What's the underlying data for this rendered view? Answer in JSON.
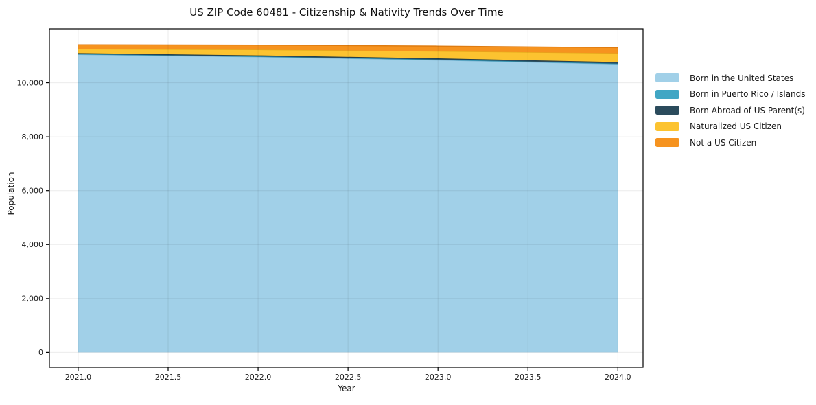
{
  "figure": {
    "title": "US ZIP Code 60481 - Citizenship & Nativity Trends Over Time",
    "xlabel": "Year",
    "ylabel": "Population",
    "background_color": "#ffffff",
    "spine_color": "#000000",
    "grid_color_rgba": "rgba(0,0,0,0.08)",
    "tick_label_color": "#1a1a1a"
  },
  "chart_data": {
    "type": "area",
    "stacked": true,
    "title": "US ZIP Code 60481 - Citizenship & Nativity Trends Over Time",
    "xlabel": "Year",
    "ylabel": "Population",
    "x": [
      2021,
      2022,
      2023,
      2024
    ],
    "series": [
      {
        "name": "Born in the United States",
        "color": "#A1D0E8",
        "edge": "#7FB6D4",
        "values": [
          11050,
          10960,
          10840,
          10690
        ]
      },
      {
        "name": "Born in Puerto Rico / Islands",
        "color": "#41A6C4",
        "edge": "#2E8BA8",
        "values": [
          15,
          18,
          20,
          22
        ]
      },
      {
        "name": "Born Abroad of US Parent(s)",
        "color": "#2B4B5C",
        "edge": "#1E3845",
        "values": [
          35,
          40,
          45,
          55
        ]
      },
      {
        "name": "Naturalized US Citizen",
        "color": "#FCC330",
        "edge": "#E3A81A",
        "values": [
          155,
          210,
          265,
          330
        ]
      },
      {
        "name": "Not a US Citizen",
        "color": "#F6931F",
        "edge": "#DE7B10",
        "values": [
          155,
          170,
          190,
          205
        ]
      }
    ],
    "xtick_labels": [
      "2021.0",
      "2021.5",
      "2022.0",
      "2022.5",
      "2023.0",
      "2023.5",
      "2024.0"
    ],
    "xtick_values": [
      2021,
      2021.5,
      2022,
      2022.5,
      2023,
      2023.5,
      2024
    ],
    "ytick_labels": [
      "0",
      "2,000",
      "4,000",
      "6,000",
      "8,000",
      "10,000"
    ],
    "ytick_values": [
      0,
      2000,
      4000,
      6000,
      8000,
      10000
    ],
    "xlim": [
      2020.84,
      2024.14
    ],
    "ylim": [
      -550,
      12000
    ],
    "grid": true,
    "legend_position": "outside-right-top"
  }
}
